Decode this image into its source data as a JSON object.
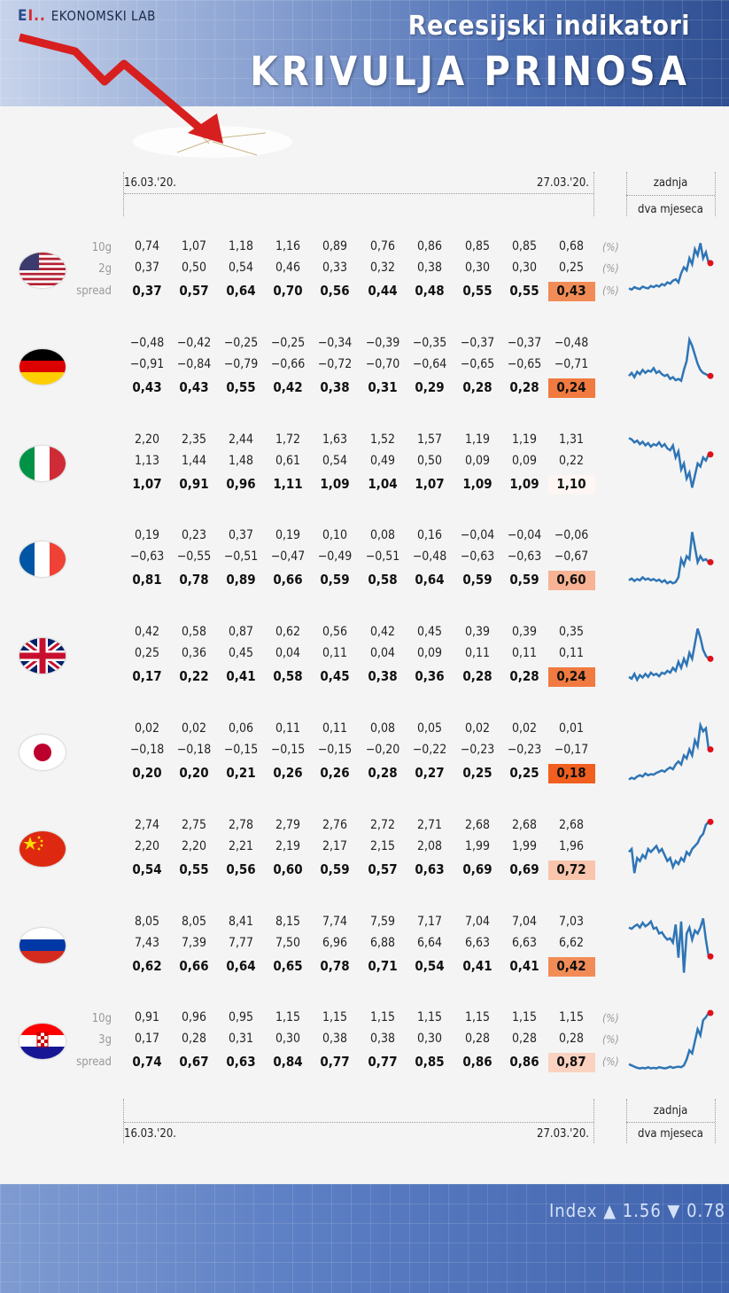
{
  "header": {
    "logo_mark": "E",
    "logo_text": "EKONOMSKI LAB",
    "subtitle": "Recesijski indikatori",
    "title": "KRIVULJA  PRINOSA"
  },
  "columns_header": {
    "date_start": "16.03.'20.",
    "date_end": "27.03.'20.",
    "last_label": "zadnja",
    "two_months_label": "dva mjeseca"
  },
  "row_labels": {
    "long": "10g",
    "short_default": "2g",
    "short_hr": "3g",
    "spread": "spread",
    "pct": "(%)"
  },
  "countries": [
    {
      "code": "us",
      "show_labels": true,
      "short_label": "2g",
      "long": [
        "0,74",
        "1,07",
        "1,18",
        "1,16",
        "0,89",
        "0,76",
        "0,86",
        "0,85",
        "0,85",
        "0,68"
      ],
      "short": [
        "0,37",
        "0,50",
        "0,54",
        "0,46",
        "0,33",
        "0,32",
        "0,38",
        "0,30",
        "0,30",
        "0,25"
      ],
      "spread": [
        "0,37",
        "0,57",
        "0,64",
        "0,70",
        "0,56",
        "0,44",
        "0,48",
        "0,55",
        "0,55",
        "0,43"
      ],
      "highlight": "#f28c57",
      "spark": [
        0.2,
        0.18,
        0.22,
        0.2,
        0.19,
        0.23,
        0.21,
        0.2,
        0.24,
        0.22,
        0.25,
        0.23,
        0.27,
        0.25,
        0.3,
        0.28,
        0.33,
        0.35,
        0.3,
        0.45,
        0.55,
        0.5,
        0.7,
        0.6,
        0.85,
        0.75,
        0.95,
        0.7,
        0.8,
        0.62
      ]
    },
    {
      "code": "de",
      "show_labels": false,
      "long": [
        "−0,48",
        "−0,42",
        "−0,25",
        "−0,25",
        "−0,34",
        "−0,39",
        "−0,35",
        "−0,37",
        "−0,37",
        "−0,48"
      ],
      "short": [
        "−0,91",
        "−0,84",
        "−0,79",
        "−0,66",
        "−0,72",
        "−0,70",
        "−0,64",
        "−0,65",
        "−0,65",
        "−0,71"
      ],
      "spread": [
        "0,43",
        "0,43",
        "0,55",
        "0,42",
        "0,38",
        "0,31",
        "0,29",
        "0,28",
        "0,28",
        "0,24"
      ],
      "highlight": "#f07a3f",
      "spark": [
        0.35,
        0.4,
        0.33,
        0.42,
        0.38,
        0.45,
        0.4,
        0.44,
        0.42,
        0.48,
        0.4,
        0.43,
        0.38,
        0.35,
        0.37,
        0.3,
        0.33,
        0.28,
        0.3,
        0.27,
        0.45,
        0.6,
        0.95,
        0.85,
        0.7,
        0.55,
        0.45,
        0.4,
        0.38,
        0.35
      ]
    },
    {
      "code": "it",
      "show_labels": false,
      "long": [
        "2,20",
        "2,35",
        "2,44",
        "1,72",
        "1,63",
        "1,52",
        "1,57",
        "1,19",
        "1,19",
        "1,31"
      ],
      "short": [
        "1,13",
        "1,44",
        "1,48",
        "0,61",
        "0,54",
        "0,49",
        "0,50",
        "0,09",
        "0,09",
        "0,22"
      ],
      "spread": [
        "1,07",
        "0,91",
        "0,96",
        "1,11",
        "1,09",
        "1,04",
        "1,07",
        "1,09",
        "1,09",
        "1,10"
      ],
      "highlight": "#fdf6f2",
      "spark": [
        0.92,
        0.9,
        0.85,
        0.88,
        0.82,
        0.86,
        0.8,
        0.84,
        0.78,
        0.82,
        0.8,
        0.85,
        0.78,
        0.82,
        0.75,
        0.72,
        0.8,
        0.6,
        0.7,
        0.4,
        0.5,
        0.25,
        0.35,
        0.1,
        0.3,
        0.5,
        0.45,
        0.6,
        0.55,
        0.65
      ]
    },
    {
      "code": "fr",
      "show_labels": false,
      "long": [
        "0,19",
        "0,23",
        "0,37",
        "0,19",
        "0,10",
        "0,08",
        "0,16",
        "−0,04",
        "−0,04",
        "−0,06"
      ],
      "short": [
        "−0,63",
        "−0,55",
        "−0,51",
        "−0,47",
        "−0,49",
        "−0,51",
        "−0,48",
        "−0,63",
        "−0,63",
        "−0,67"
      ],
      "spread": [
        "0,81",
        "0,78",
        "0,89",
        "0,66",
        "0,59",
        "0,58",
        "0,64",
        "0,59",
        "0,59",
        "0,60"
      ],
      "highlight": "#f7b394",
      "spark": [
        0.15,
        0.18,
        0.14,
        0.17,
        0.15,
        0.2,
        0.16,
        0.18,
        0.15,
        0.17,
        0.14,
        0.16,
        0.12,
        0.15,
        0.1,
        0.13,
        0.1,
        0.12,
        0.2,
        0.5,
        0.4,
        0.55,
        0.5,
        0.95,
        0.7,
        0.45,
        0.55,
        0.48,
        0.5,
        0.45
      ]
    },
    {
      "code": "gb",
      "show_labels": false,
      "long": [
        "0,42",
        "0,58",
        "0,87",
        "0,62",
        "0,56",
        "0,42",
        "0,45",
        "0,39",
        "0,39",
        "0,35"
      ],
      "short": [
        "0,25",
        "0,36",
        "0,45",
        "0,04",
        "0,11",
        "0,04",
        "0,09",
        "0,11",
        "0,11",
        "0,11"
      ],
      "spread": [
        "0,17",
        "0,22",
        "0,41",
        "0,58",
        "0,45",
        "0,38",
        "0,36",
        "0,28",
        "0,28",
        "0,24"
      ],
      "highlight": "#f07a3f",
      "spark": [
        0.15,
        0.12,
        0.2,
        0.1,
        0.18,
        0.14,
        0.2,
        0.15,
        0.22,
        0.18,
        0.2,
        0.16,
        0.22,
        0.2,
        0.25,
        0.22,
        0.3,
        0.25,
        0.4,
        0.3,
        0.45,
        0.35,
        0.55,
        0.45,
        0.7,
        0.95,
        0.8,
        0.6,
        0.5,
        0.45
      ]
    },
    {
      "code": "jp",
      "show_labels": false,
      "long": [
        "0,02",
        "0,02",
        "0,06",
        "0,11",
        "0,11",
        "0,08",
        "0,05",
        "0,02",
        "0,02",
        "0,01"
      ],
      "short": [
        "−0,18",
        "−0,18",
        "−0,15",
        "−0,15",
        "−0,15",
        "−0,20",
        "−0,22",
        "−0,23",
        "−0,23",
        "−0,17"
      ],
      "spread": [
        "0,20",
        "0,20",
        "0,21",
        "0,26",
        "0,26",
        "0,28",
        "0,27",
        "0,25",
        "0,25",
        "0,18"
      ],
      "highlight": "#f05f1e",
      "spark": [
        0.05,
        0.08,
        0.06,
        0.1,
        0.12,
        0.1,
        0.15,
        0.12,
        0.14,
        0.13,
        0.16,
        0.18,
        0.2,
        0.18,
        0.22,
        0.25,
        0.22,
        0.3,
        0.35,
        0.3,
        0.45,
        0.4,
        0.55,
        0.45,
        0.7,
        0.6,
        0.95,
        0.85,
        0.9,
        0.55
      ]
    },
    {
      "code": "cn",
      "show_labels": false,
      "long": [
        "2,74",
        "2,75",
        "2,78",
        "2,79",
        "2,76",
        "2,72",
        "2,71",
        "2,68",
        "2,68",
        "2,68"
      ],
      "short": [
        "2,20",
        "2,20",
        "2,21",
        "2,19",
        "2,17",
        "2,15",
        "2,08",
        "1,99",
        "1,99",
        "1,96"
      ],
      "spread": [
        "0,54",
        "0,55",
        "0,56",
        "0,60",
        "0,59",
        "0,57",
        "0,63",
        "0,69",
        "0,69",
        "0,72"
      ],
      "highlight": "#f9c6ad",
      "spark": [
        0.45,
        0.5,
        0.1,
        0.35,
        0.3,
        0.4,
        0.35,
        0.5,
        0.45,
        0.5,
        0.55,
        0.45,
        0.5,
        0.4,
        0.3,
        0.35,
        0.2,
        0.3,
        0.25,
        0.35,
        0.3,
        0.45,
        0.4,
        0.5,
        0.55,
        0.6,
        0.7,
        0.75,
        0.9,
        0.95
      ]
    },
    {
      "code": "ru",
      "show_labels": false,
      "long": [
        "8,05",
        "8,05",
        "8,41",
        "8,15",
        "7,74",
        "7,59",
        "7,17",
        "7,04",
        "7,04",
        "7,03"
      ],
      "short": [
        "7,43",
        "7,39",
        "7,77",
        "7,50",
        "6,96",
        "6,88",
        "6,64",
        "6,63",
        "6,63",
        "6,62"
      ],
      "spread": [
        "0,62",
        "0,66",
        "0,64",
        "0,65",
        "0,78",
        "0,71",
        "0,54",
        "0,41",
        "0,41",
        "0,42"
      ],
      "highlight": "#f28c57",
      "spark": [
        0.8,
        0.78,
        0.82,
        0.85,
        0.8,
        0.88,
        0.82,
        0.85,
        0.9,
        0.78,
        0.8,
        0.7,
        0.72,
        0.65,
        0.6,
        0.62,
        0.55,
        0.85,
        0.3,
        0.9,
        0.05,
        0.7,
        0.8,
        0.6,
        0.75,
        0.7,
        0.8,
        0.95,
        0.6,
        0.32
      ]
    },
    {
      "code": "hr",
      "show_labels": true,
      "short_label": "3g",
      "long": [
        "0,91",
        "0,96",
        "0,95",
        "1,15",
        "1,15",
        "1,15",
        "1,15",
        "1,15",
        "1,15",
        "1,15"
      ],
      "short": [
        "0,17",
        "0,28",
        "0,31",
        "0,30",
        "0,38",
        "0,38",
        "0,30",
        "0,28",
        "0,28",
        "0,28"
      ],
      "spread": [
        "0,74",
        "0,67",
        "0,63",
        "0,84",
        "0,77",
        "0,77",
        "0,85",
        "0,86",
        "0,86",
        "0,87"
      ],
      "highlight": "#fbd2bf",
      "spark": [
        0.12,
        0.1,
        0.08,
        0.06,
        0.05,
        0.06,
        0.05,
        0.07,
        0.05,
        0.06,
        0.05,
        0.07,
        0.06,
        0.05,
        0.06,
        0.08,
        0.06,
        0.07,
        0.08,
        0.07,
        0.1,
        0.2,
        0.35,
        0.3,
        0.5,
        0.7,
        0.6,
        0.85,
        0.9,
        0.97
      ]
    }
  ],
  "footer": {
    "index_text": "Index  ▲ 1.56  ▼ 0.78"
  },
  "colors": {
    "line": "#2e75b6",
    "marker": "#e0101b"
  }
}
